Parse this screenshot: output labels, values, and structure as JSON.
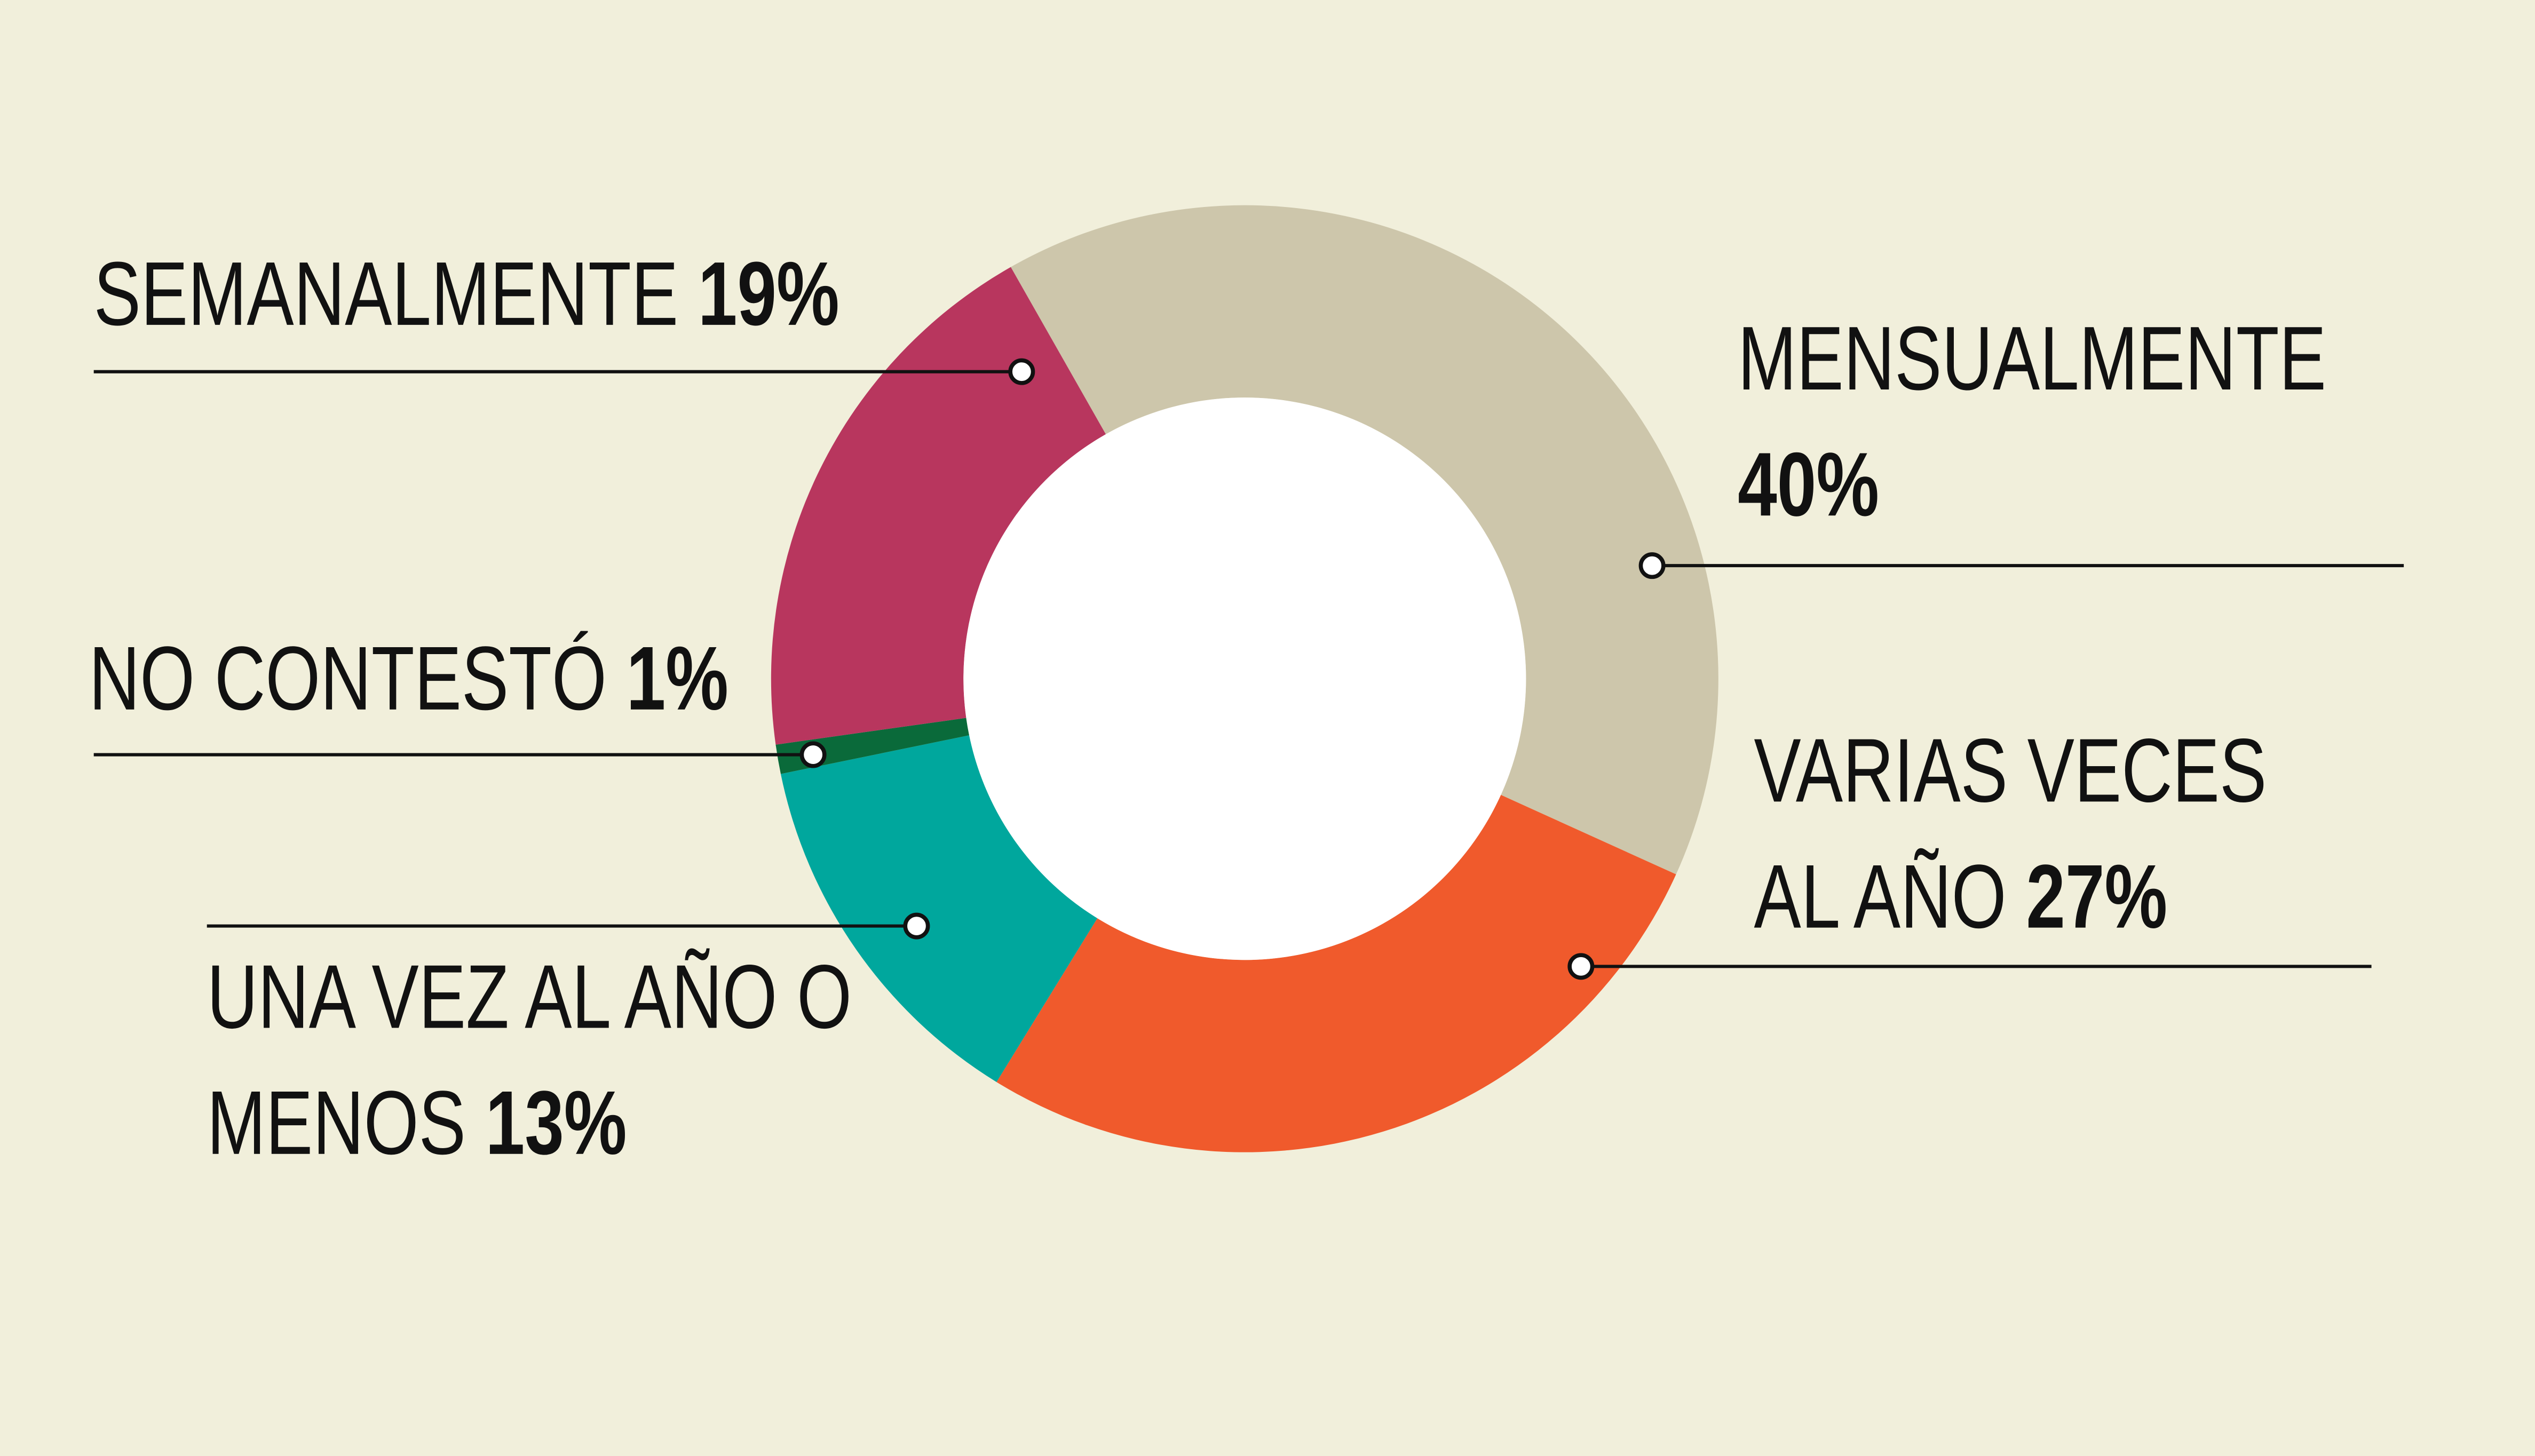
{
  "chart_data": {
    "type": "donut",
    "categories": [
      "MENSUALMENTE",
      "VARIAS VECES AL AÑO",
      "UNA VEZ AL AÑO O MENOS",
      "NO CONTESTÓ",
      "SEMANALMENTE"
    ],
    "values": [
      40,
      27,
      13,
      1,
      19
    ],
    "value_labels": [
      "40%",
      "27%",
      "13%",
      "1%",
      "19%"
    ],
    "colors": [
      "#cdc6ab",
      "#f05a2c",
      "#00a79d",
      "#0a6a3a",
      "#b8365e"
    ]
  }
}
